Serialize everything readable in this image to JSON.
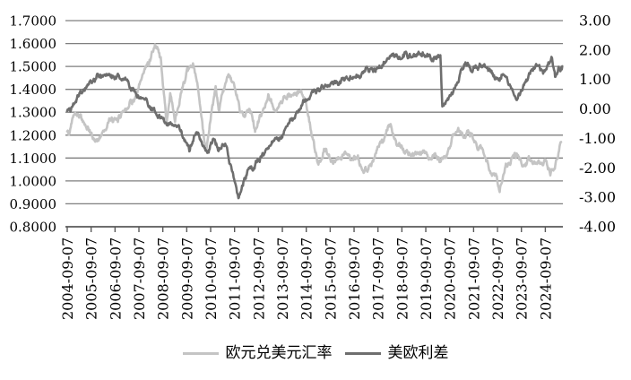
{
  "chart_data": {
    "type": "line",
    "title": "",
    "grid": true,
    "legend_position": "bottom",
    "left_axis": {
      "min": 0.8,
      "max": 1.7,
      "tick_step": 0.1,
      "labels": [
        "1.7000",
        "1.6000",
        "1.5000",
        "1.4000",
        "1.3000",
        "1.2000",
        "1.1000",
        "1.0000",
        "0.9000",
        "0.8000"
      ]
    },
    "right_axis": {
      "min": -4,
      "max": 3,
      "tick_step": 1,
      "labels": [
        "3.00",
        "2.00",
        "1.00",
        "0.00",
        "-1.00",
        "-2.00",
        "-3.00",
        "-4.00"
      ]
    },
    "x_axis": {
      "tick_labels": [
        "2004-09-07",
        "2005-09-07",
        "2006-09-07",
        "2007-09-07",
        "2008-09-07",
        "2009-09-07",
        "2010-09-07",
        "2011-09-07",
        "2012-09-07",
        "2013-09-07",
        "2014-09-07",
        "2015-09-07",
        "2016-09-07",
        "2017-09-07",
        "2018-09-07",
        "2019-09-07",
        "2020-09-07",
        "2021-09-07",
        "2022-09-07",
        "2023-09-07",
        "2024-09-07"
      ],
      "tick_start_year": 2004.69,
      "tick_step_years": 1,
      "domain_start": 2004.69,
      "domain_end": 2025.4
    },
    "series": [
      {
        "name": "欧元兑美元汇率",
        "axis": "left",
        "color": "#c4c4c4",
        "points": [
          [
            2004.69,
            1.215
          ],
          [
            2004.78,
            1.2
          ],
          [
            2004.95,
            1.3
          ],
          [
            2005.05,
            1.31
          ],
          [
            2005.3,
            1.28
          ],
          [
            2005.55,
            1.22
          ],
          [
            2005.9,
            1.17
          ],
          [
            2006.15,
            1.21
          ],
          [
            2006.45,
            1.27
          ],
          [
            2006.75,
            1.255
          ],
          [
            2007.0,
            1.3
          ],
          [
            2007.3,
            1.34
          ],
          [
            2007.6,
            1.365
          ],
          [
            2007.85,
            1.44
          ],
          [
            2008.1,
            1.5
          ],
          [
            2008.25,
            1.55
          ],
          [
            2008.4,
            1.59
          ],
          [
            2008.6,
            1.53
          ],
          [
            2008.85,
            1.25
          ],
          [
            2009.0,
            1.39
          ],
          [
            2009.2,
            1.27
          ],
          [
            2009.5,
            1.41
          ],
          [
            2009.75,
            1.46
          ],
          [
            2009.95,
            1.5
          ],
          [
            2010.15,
            1.4
          ],
          [
            2010.3,
            1.27
          ],
          [
            2010.5,
            1.14
          ],
          [
            2010.65,
            1.24
          ],
          [
            2010.9,
            1.4
          ],
          [
            2011.05,
            1.31
          ],
          [
            2011.2,
            1.4
          ],
          [
            2011.4,
            1.47
          ],
          [
            2011.65,
            1.43
          ],
          [
            2011.9,
            1.32
          ],
          [
            2012.1,
            1.28
          ],
          [
            2012.3,
            1.32
          ],
          [
            2012.55,
            1.21
          ],
          [
            2012.8,
            1.28
          ],
          [
            2013.1,
            1.36
          ],
          [
            2013.35,
            1.29
          ],
          [
            2013.6,
            1.33
          ],
          [
            2013.9,
            1.37
          ],
          [
            2014.15,
            1.36
          ],
          [
            2014.45,
            1.39
          ],
          [
            2014.7,
            1.33
          ],
          [
            2014.95,
            1.19
          ],
          [
            2015.2,
            1.05
          ],
          [
            2015.45,
            1.13
          ],
          [
            2015.7,
            1.08
          ],
          [
            2015.95,
            1.09
          ],
          [
            2016.2,
            1.12
          ],
          [
            2016.45,
            1.13
          ],
          [
            2016.6,
            1.1
          ],
          [
            2016.85,
            1.1
          ],
          [
            2017.05,
            1.04
          ],
          [
            2017.35,
            1.08
          ],
          [
            2017.65,
            1.14
          ],
          [
            2017.95,
            1.19
          ],
          [
            2018.2,
            1.245
          ],
          [
            2018.5,
            1.16
          ],
          [
            2018.8,
            1.14
          ],
          [
            2019.1,
            1.13
          ],
          [
            2019.45,
            1.12
          ],
          [
            2019.8,
            1.1
          ],
          [
            2020.1,
            1.11
          ],
          [
            2020.3,
            1.07
          ],
          [
            2020.55,
            1.12
          ],
          [
            2020.8,
            1.19
          ],
          [
            2021.05,
            1.225
          ],
          [
            2021.3,
            1.19
          ],
          [
            2021.5,
            1.22
          ],
          [
            2021.8,
            1.16
          ],
          [
            2022.1,
            1.13
          ],
          [
            2022.4,
            1.05
          ],
          [
            2022.6,
            1.03
          ],
          [
            2022.78,
            0.955
          ],
          [
            2023.0,
            1.07
          ],
          [
            2023.3,
            1.1
          ],
          [
            2023.55,
            1.12
          ],
          [
            2023.8,
            1.05
          ],
          [
            2024.0,
            1.095
          ],
          [
            2024.25,
            1.07
          ],
          [
            2024.5,
            1.09
          ],
          [
            2024.7,
            1.115
          ],
          [
            2024.9,
            1.04
          ],
          [
            2025.05,
            1.06
          ],
          [
            2025.2,
            1.1
          ],
          [
            2025.35,
            1.17
          ]
        ]
      },
      {
        "name": "美欧利差",
        "axis": "right",
        "color": "#6e6e6e",
        "points": [
          [
            2004.69,
            -0.1
          ],
          [
            2004.9,
            0.1
          ],
          [
            2005.2,
            0.5
          ],
          [
            2005.6,
            0.95
          ],
          [
            2005.9,
            1.0
          ],
          [
            2006.2,
            1.1
          ],
          [
            2006.55,
            1.0
          ],
          [
            2006.85,
            1.2
          ],
          [
            2007.1,
            0.95
          ],
          [
            2007.3,
            0.75
          ],
          [
            2007.6,
            0.5
          ],
          [
            2007.9,
            0.3
          ],
          [
            2008.15,
            0.1
          ],
          [
            2008.4,
            -0.15
          ],
          [
            2008.7,
            -0.4
          ],
          [
            2008.95,
            -0.55
          ],
          [
            2009.2,
            -0.45
          ],
          [
            2009.45,
            -0.65
          ],
          [
            2009.8,
            -1.5
          ],
          [
            2010.1,
            -0.7
          ],
          [
            2010.3,
            -1.1
          ],
          [
            2010.55,
            -1.55
          ],
          [
            2010.8,
            -1.0
          ],
          [
            2011.0,
            -1.35
          ],
          [
            2011.3,
            -1.1
          ],
          [
            2011.55,
            -1.9
          ],
          [
            2011.85,
            -3.05
          ],
          [
            2012.1,
            -2.3
          ],
          [
            2012.35,
            -2.0
          ],
          [
            2012.7,
            -1.75
          ],
          [
            2013.0,
            -1.45
          ],
          [
            2013.25,
            -1.15
          ],
          [
            2013.55,
            -1.0
          ],
          [
            2013.8,
            -0.75
          ],
          [
            2014.1,
            -0.35
          ],
          [
            2014.35,
            -0.1
          ],
          [
            2014.6,
            0.25
          ],
          [
            2014.9,
            0.45
          ],
          [
            2015.2,
            0.6
          ],
          [
            2015.5,
            0.75
          ],
          [
            2015.8,
            0.9
          ],
          [
            2016.1,
            1.0
          ],
          [
            2016.45,
            1.1
          ],
          [
            2016.75,
            1.1
          ],
          [
            2017.05,
            1.2
          ],
          [
            2017.35,
            1.3
          ],
          [
            2017.65,
            1.35
          ],
          [
            2017.95,
            1.5
          ],
          [
            2018.25,
            1.7
          ],
          [
            2018.45,
            1.85
          ],
          [
            2018.65,
            1.75
          ],
          [
            2018.9,
            1.85
          ],
          [
            2019.1,
            1.7
          ],
          [
            2019.35,
            1.9
          ],
          [
            2019.6,
            2.0
          ],
          [
            2019.85,
            1.8
          ],
          [
            2020.0,
            1.7
          ],
          [
            2020.15,
            1.9
          ],
          [
            2020.3,
            1.95
          ],
          [
            2020.38,
            0.12
          ],
          [
            2020.55,
            0.35
          ],
          [
            2020.75,
            0.5
          ],
          [
            2020.95,
            0.85
          ],
          [
            2021.15,
            1.25
          ],
          [
            2021.35,
            1.55
          ],
          [
            2021.6,
            1.35
          ],
          [
            2021.85,
            1.4
          ],
          [
            2022.1,
            1.45
          ],
          [
            2022.3,
            1.3
          ],
          [
            2022.5,
            1.1
          ],
          [
            2022.7,
            0.9
          ],
          [
            2022.9,
            1.15
          ],
          [
            2023.1,
            0.85
          ],
          [
            2023.3,
            0.55
          ],
          [
            2023.5,
            0.3
          ],
          [
            2023.7,
            0.65
          ],
          [
            2023.95,
            1.0
          ],
          [
            2024.15,
            1.3
          ],
          [
            2024.4,
            1.45
          ],
          [
            2024.6,
            1.25
          ],
          [
            2024.8,
            1.55
          ],
          [
            2024.95,
            1.72
          ],
          [
            2025.1,
            1.1
          ],
          [
            2025.25,
            1.4
          ],
          [
            2025.4,
            1.45
          ]
        ]
      }
    ],
    "legend": [
      {
        "label": "欧元兑美元汇率"
      },
      {
        "label": "美欧利差"
      }
    ]
  },
  "style": {
    "gridline_color": "#7f7f7f",
    "axis_color": "#595959",
    "text_color": "#000000",
    "background": "#ffffff"
  }
}
